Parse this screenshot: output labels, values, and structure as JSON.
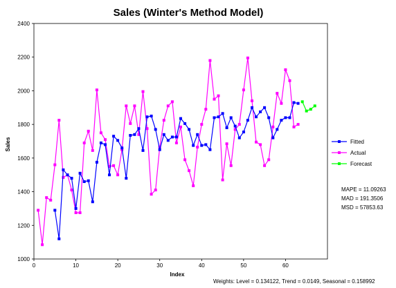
{
  "chart_data": {
    "type": "line",
    "title": "Sales (Winter's Method Model)",
    "xlabel": "Index",
    "ylabel": "Sales",
    "xlim": [
      0,
      70
    ],
    "ylim": [
      1000,
      2400
    ],
    "xticks": [
      0,
      10,
      20,
      30,
      40,
      50,
      60
    ],
    "yticks": [
      1000,
      1200,
      1400,
      1600,
      1800,
      2000,
      2200,
      2400
    ],
    "grid": false,
    "legend_position": "right",
    "series": [
      {
        "name": "Fitted",
        "color": "#0000ff",
        "x": [
          5,
          6,
          7,
          8,
          9,
          10,
          11,
          12,
          13,
          14,
          15,
          16,
          17,
          18,
          19,
          20,
          21,
          22,
          23,
          24,
          25,
          26,
          27,
          28,
          29,
          30,
          31,
          32,
          33,
          34,
          35,
          36,
          37,
          38,
          39,
          40,
          41,
          42,
          43,
          44,
          45,
          46,
          47,
          48,
          49,
          50,
          51,
          52,
          53,
          54,
          55,
          56,
          57,
          58,
          59,
          60,
          61,
          62,
          63
        ],
        "values": [
          1290,
          1120,
          1530,
          1500,
          1480,
          1300,
          1510,
          1460,
          1465,
          1340,
          1575,
          1690,
          1680,
          1500,
          1730,
          1705,
          1660,
          1480,
          1735,
          1740,
          1775,
          1645,
          1845,
          1850,
          1770,
          1650,
          1740,
          1705,
          1725,
          1725,
          1835,
          1805,
          1770,
          1675,
          1740,
          1675,
          1680,
          1650,
          1840,
          1845,
          1865,
          1780,
          1840,
          1790,
          1720,
          1755,
          1825,
          1900,
          1845,
          1875,
          1900,
          1840,
          1720,
          1770,
          1825,
          1840,
          1840,
          1930,
          1925
        ]
      },
      {
        "name": "Actual",
        "color": "#ff00ff",
        "x": [
          1,
          2,
          3,
          4,
          5,
          6,
          7,
          8,
          9,
          10,
          11,
          12,
          13,
          14,
          15,
          16,
          17,
          18,
          19,
          20,
          21,
          22,
          23,
          24,
          25,
          26,
          27,
          28,
          29,
          30,
          31,
          32,
          33,
          34,
          35,
          36,
          37,
          38,
          39,
          40,
          41,
          42,
          43,
          44,
          45,
          46,
          47,
          48,
          49,
          50,
          51,
          52,
          53,
          54,
          55,
          56,
          57,
          58,
          59,
          60,
          61,
          62,
          63
        ],
        "values": [
          1290,
          1085,
          1365,
          1350,
          1560,
          1825,
          1485,
          1500,
          1410,
          1275,
          1275,
          1690,
          1760,
          1645,
          2005,
          1750,
          1710,
          1550,
          1555,
          1500,
          1650,
          1910,
          1805,
          1910,
          1740,
          1995,
          1775,
          1385,
          1410,
          1665,
          1825,
          1910,
          1935,
          1690,
          1785,
          1590,
          1525,
          1435,
          1665,
          1800,
          1890,
          2180,
          1950,
          1970,
          1470,
          1685,
          1555,
          1770,
          1800,
          2005,
          2195,
          1940,
          1695,
          1680,
          1555,
          1590,
          1785,
          1985,
          1925,
          2125,
          2060,
          1785,
          1800
        ]
      },
      {
        "name": "Forecast",
        "color": "#00ff00",
        "x": [
          64,
          65,
          66,
          67
        ],
        "values": [
          1935,
          1880,
          1890,
          1910
        ]
      }
    ]
  },
  "stats": {
    "mape": "MAPE = 11.09263",
    "mad": "MAD = 191.3506",
    "msd": "MSD = 57853.63"
  },
  "weights": "Weights: Level = 0.134122,  Trend = 0.0149,  Seasonal = 0.158992"
}
